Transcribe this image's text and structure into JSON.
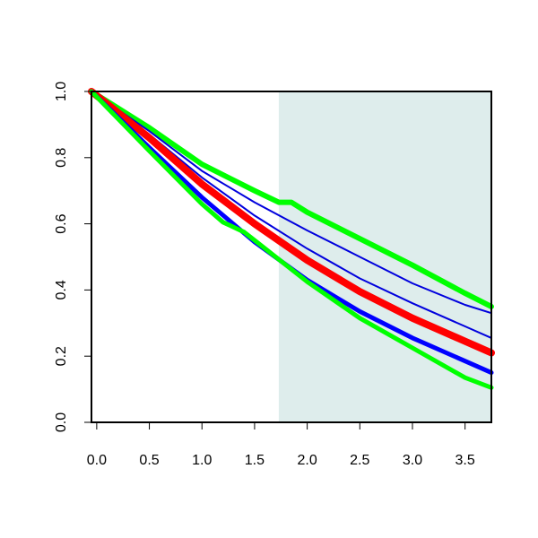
{
  "chart_data": {
    "type": "line",
    "title": "",
    "xlabel": "",
    "ylabel": "",
    "xlim": [
      -0.05,
      3.75
    ],
    "ylim": [
      0,
      1
    ],
    "grid": false,
    "legend": "none",
    "x_ticks": [
      "0.0",
      "0.5",
      "1.0",
      "1.5",
      "2.0",
      "2.5",
      "3.0",
      "3.5"
    ],
    "y_ticks": [
      "0.0",
      "0.2",
      "0.4",
      "0.6",
      "0.8",
      "1.0"
    ],
    "shaded_region": {
      "x_from": 1.73,
      "x_to": 3.75,
      "color": "#deedec"
    },
    "series": [
      {
        "color": "#00ff00",
        "points": [
          [
            -0.05,
            1.0
          ],
          [
            0.5,
            0.89
          ],
          [
            1.0,
            0.78
          ],
          [
            1.5,
            0.7
          ],
          [
            1.73,
            0.665
          ],
          [
            1.85,
            0.665
          ],
          [
            2.0,
            0.635
          ],
          [
            2.5,
            0.555
          ],
          [
            3.0,
            0.475
          ],
          [
            3.5,
            0.39
          ],
          [
            3.75,
            0.35
          ]
        ]
      },
      {
        "color": "#0000dd",
        "points": [
          [
            -0.05,
            1.0
          ],
          [
            0.5,
            0.88
          ],
          [
            1.0,
            0.76
          ],
          [
            1.5,
            0.665
          ],
          [
            2.0,
            0.58
          ],
          [
            2.5,
            0.5
          ],
          [
            3.0,
            0.42
          ],
          [
            3.5,
            0.355
          ],
          [
            3.75,
            0.33
          ]
        ]
      },
      {
        "color": "#0000dd",
        "points": [
          [
            -0.05,
            1.0
          ],
          [
            0.5,
            0.87
          ],
          [
            1.0,
            0.74
          ],
          [
            1.5,
            0.625
          ],
          [
            2.0,
            0.525
          ],
          [
            2.5,
            0.435
          ],
          [
            3.0,
            0.36
          ],
          [
            3.5,
            0.29
          ],
          [
            3.75,
            0.255
          ]
        ]
      },
      {
        "color": "#ff0000",
        "points": [
          [
            -0.05,
            1.0
          ],
          [
            0.5,
            0.86
          ],
          [
            1.0,
            0.72
          ],
          [
            1.5,
            0.6
          ],
          [
            2.0,
            0.49
          ],
          [
            2.5,
            0.395
          ],
          [
            3.0,
            0.315
          ],
          [
            3.5,
            0.245
          ],
          [
            3.75,
            0.21
          ]
        ]
      },
      {
        "color": "#0000ff",
        "points": [
          [
            -0.05,
            1.0
          ],
          [
            0.5,
            0.83
          ],
          [
            1.0,
            0.68
          ],
          [
            1.5,
            0.545
          ],
          [
            2.0,
            0.43
          ],
          [
            2.5,
            0.335
          ],
          [
            3.0,
            0.255
          ],
          [
            3.5,
            0.185
          ],
          [
            3.75,
            0.15
          ]
        ]
      },
      {
        "color": "#00ff00",
        "points": [
          [
            -0.05,
            1.0
          ],
          [
            0.5,
            0.82
          ],
          [
            1.0,
            0.66
          ],
          [
            1.2,
            0.605
          ],
          [
            1.4,
            0.575
          ],
          [
            1.5,
            0.55
          ],
          [
            2.0,
            0.425
          ],
          [
            2.5,
            0.315
          ],
          [
            3.0,
            0.225
          ],
          [
            3.5,
            0.135
          ],
          [
            3.75,
            0.105
          ]
        ]
      }
    ]
  }
}
